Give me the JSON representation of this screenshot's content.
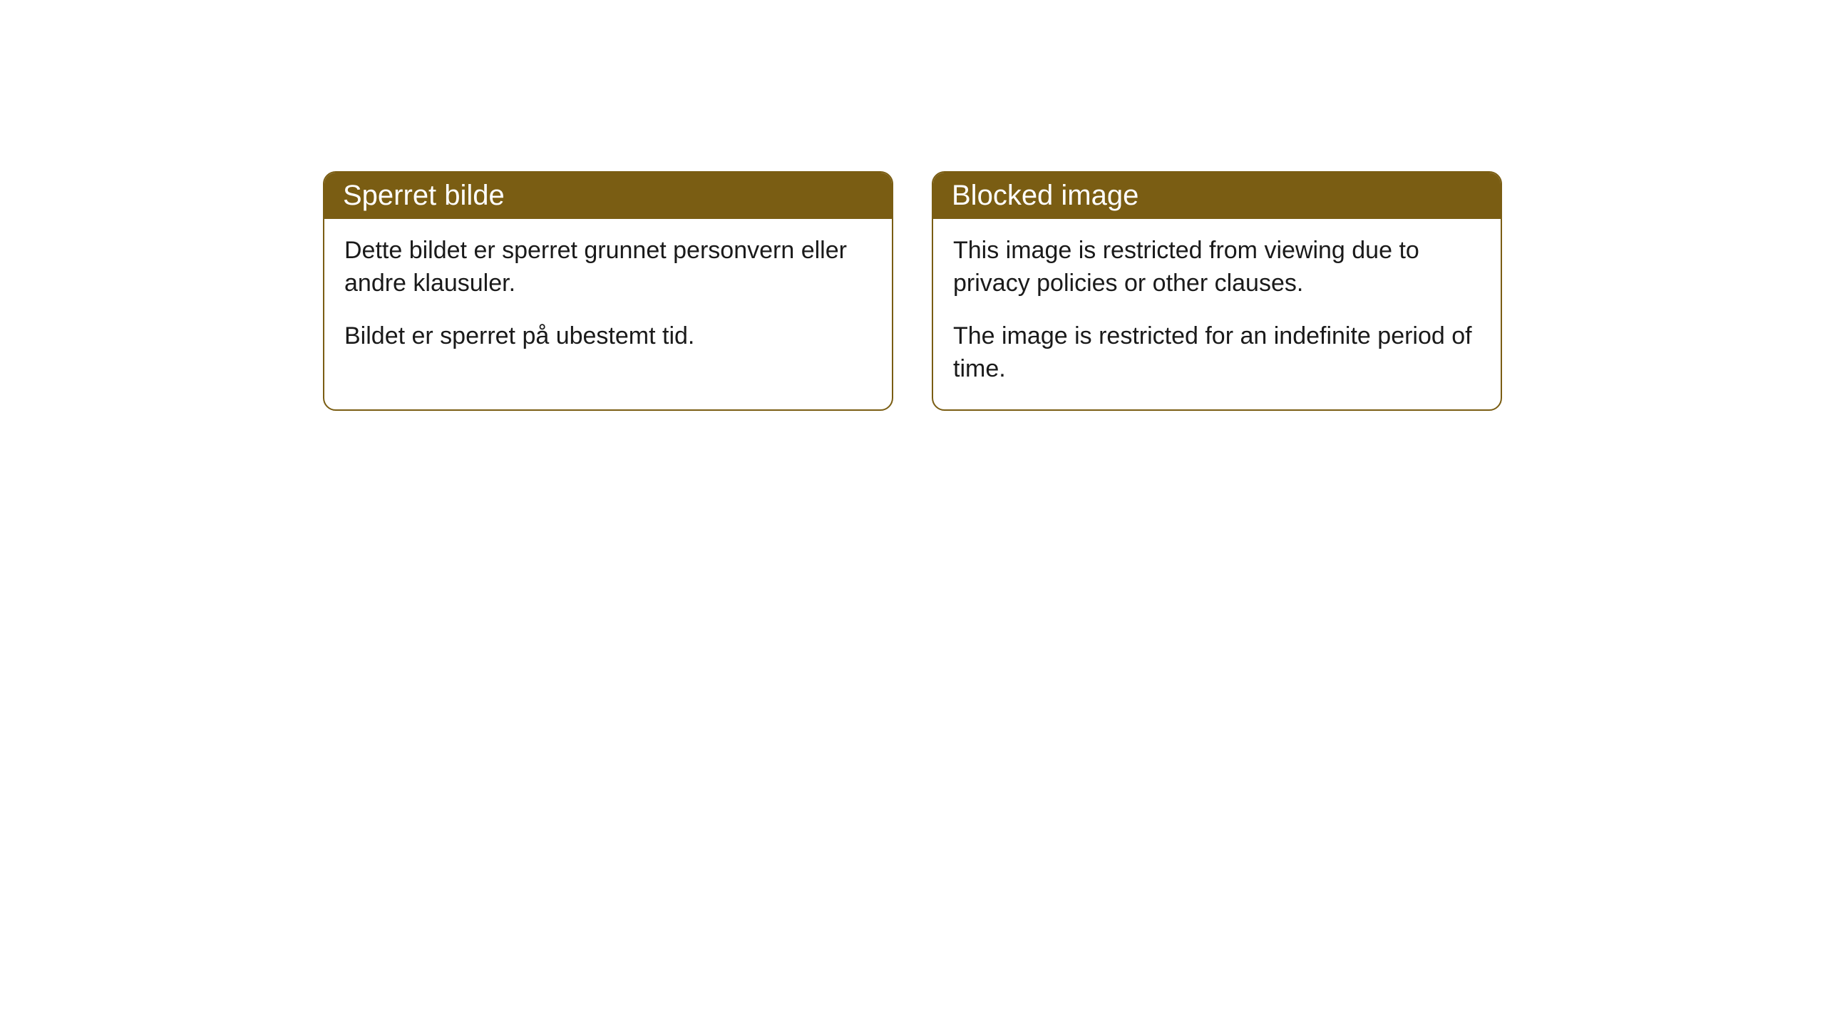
{
  "cards": {
    "left": {
      "title": "Sperret bilde",
      "paragraph1": "Dette bildet er sperret grunnet personvern eller andre klausuler.",
      "paragraph2": "Bildet er sperret på ubestemt tid."
    },
    "right": {
      "title": "Blocked image",
      "paragraph1": "This image is restricted from viewing due to privacy policies or other clauses.",
      "paragraph2": "The image is restricted for an indefinite period of time."
    }
  },
  "style": {
    "header_bg_color": "#7a5d13",
    "header_text_color": "#ffffff",
    "border_color": "#7a5d13",
    "body_bg_color": "#ffffff",
    "body_text_color": "#1a1a1a",
    "border_radius": 18,
    "title_fontsize": 40,
    "body_fontsize": 34
  }
}
